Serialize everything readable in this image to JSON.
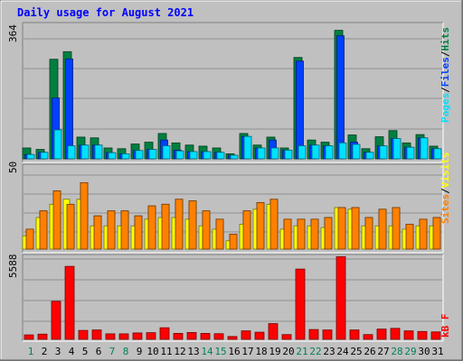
{
  "title": "Daily usage for August 2021",
  "colors": {
    "background": "#c0c0c0",
    "title": "#0000ff",
    "hits": "#008040",
    "files": "#0040ff",
    "pages": "#00e0ff",
    "visits": "#ffff00",
    "sites": "#ff8000",
    "kbytes": "#ff0000",
    "weekend_label": "#00805c",
    "weekday_label": "#000000"
  },
  "chart_data": [
    {
      "type": "bar",
      "name": "hits-files-pages",
      "ymax_label": "364",
      "ylim": [
        0,
        364
      ],
      "legend": [
        "Pages",
        "/",
        "Files",
        "/",
        "Hits"
      ],
      "categories": [
        "1",
        "2",
        "3",
        "4",
        "5",
        "6",
        "7",
        "8",
        "9",
        "10",
        "11",
        "12",
        "13",
        "14",
        "15",
        "16",
        "17",
        "18",
        "19",
        "20",
        "21",
        "22",
        "23",
        "24",
        "25",
        "26",
        "27",
        "28",
        "29",
        "30",
        "31"
      ],
      "series": [
        {
          "name": "Hits",
          "values": [
            30,
            26,
            275,
            296,
            60,
            58,
            30,
            28,
            41,
            46,
            70,
            44,
            38,
            35,
            30,
            14,
            70,
            38,
            60,
            30,
            280,
            52,
            46,
            355,
            66,
            28,
            61,
            78,
            44,
            67,
            35
          ]
        },
        {
          "name": "Files",
          "values": [
            12,
            18,
            168,
            276,
            38,
            38,
            17,
            14,
            23,
            26,
            52,
            24,
            20,
            20,
            18,
            10,
            62,
            30,
            52,
            24,
            270,
            38,
            36,
            340,
            46,
            18,
            36,
            56,
            32,
            58,
            28
          ]
        },
        {
          "name": "Pages",
          "values": [
            12,
            18,
            80,
            36,
            38,
            38,
            17,
            14,
            23,
            26,
            36,
            22,
            20,
            20,
            18,
            10,
            62,
            30,
            30,
            24,
            36,
            38,
            36,
            44,
            40,
            18,
            36,
            56,
            32,
            58,
            28
          ]
        }
      ]
    },
    {
      "type": "bar",
      "name": "visits-sites",
      "ymax_label": "50",
      "ylim": [
        0,
        50
      ],
      "legend": [
        "Sites",
        "/",
        "Visits"
      ],
      "categories": [
        "1",
        "2",
        "3",
        "4",
        "5",
        "6",
        "7",
        "8",
        "9",
        "10",
        "11",
        "12",
        "13",
        "14",
        "15",
        "16",
        "17",
        "18",
        "19",
        "20",
        "21",
        "22",
        "23",
        "24",
        "25",
        "26",
        "27",
        "28",
        "29",
        "30",
        "31"
      ],
      "series": [
        {
          "name": "Visits",
          "values": [
            8,
            19,
            27,
            30,
            30,
            14,
            14,
            14,
            14,
            18,
            19,
            19,
            18,
            14,
            12,
            5,
            15,
            24,
            27,
            12,
            14,
            14,
            13,
            25,
            24,
            14,
            14,
            14,
            12,
            14,
            14
          ]
        },
        {
          "name": "Sites",
          "values": [
            12,
            23,
            35,
            27,
            40,
            20,
            23,
            23,
            20,
            26,
            27,
            30,
            29,
            23,
            18,
            9,
            23,
            28,
            30,
            18,
            18,
            18,
            19,
            25,
            25,
            19,
            24,
            25,
            15,
            18,
            19
          ]
        }
      ]
    },
    {
      "type": "bar",
      "name": "kbytes",
      "ymax_label": "5588",
      "ylim": [
        0,
        5588
      ],
      "legend": [
        "kB F"
      ],
      "categories": [
        "1",
        "2",
        "3",
        "4",
        "5",
        "6",
        "7",
        "8",
        "9",
        "10",
        "11",
        "12",
        "13",
        "14",
        "15",
        "16",
        "17",
        "18",
        "19",
        "20",
        "21",
        "22",
        "23",
        "24",
        "25",
        "26",
        "27",
        "28",
        "29",
        "30",
        "31"
      ],
      "series": [
        {
          "name": "kB F",
          "values": [
            300,
            350,
            2560,
            4910,
            600,
            630,
            370,
            370,
            430,
            450,
            780,
            400,
            460,
            400,
            380,
            190,
            570,
            480,
            1060,
            320,
            4730,
            660,
            630,
            5560,
            630,
            320,
            690,
            740,
            570,
            530,
            500
          ]
        }
      ]
    }
  ]
}
